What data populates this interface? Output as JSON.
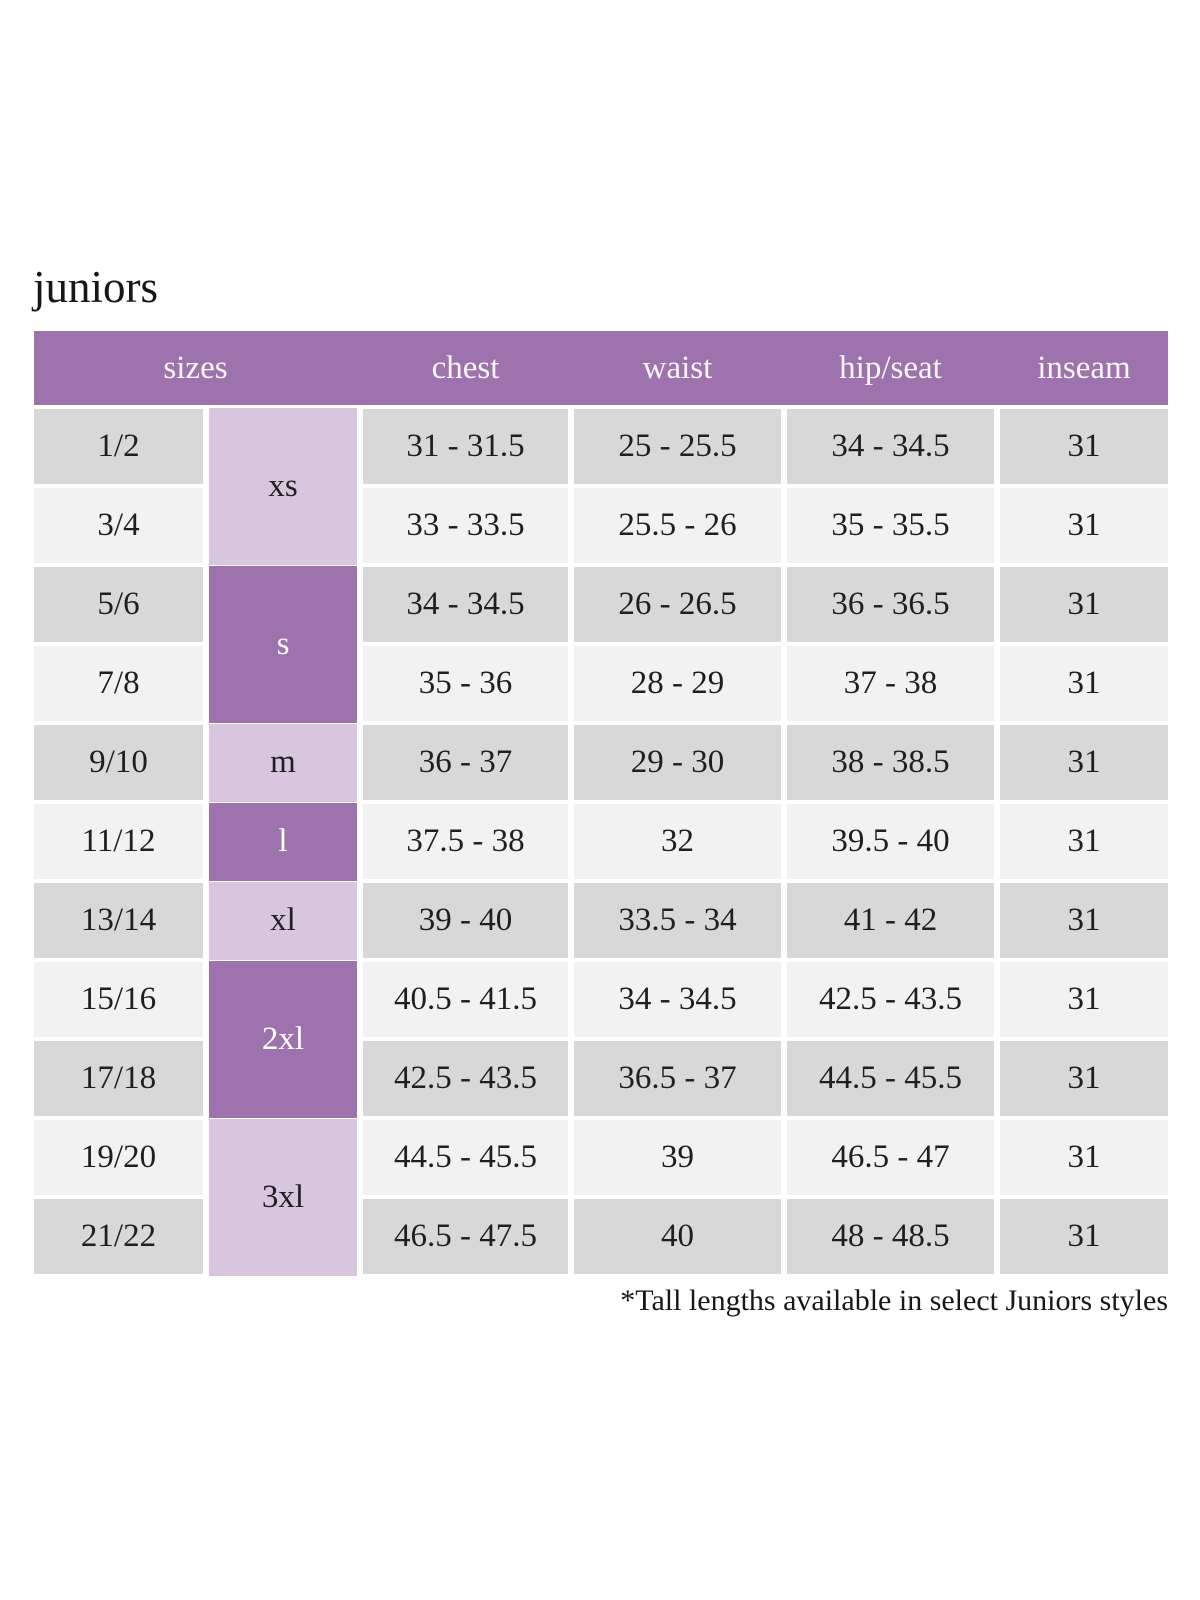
{
  "page": {
    "title": "juniors",
    "footnote": "*Tall lengths available in select Juniors styles"
  },
  "colors": {
    "purple": "#9e73ad",
    "light_purple": "#d7c6dd",
    "row_gray": "#d8d8d8",
    "row_light": "#f3f2f3",
    "header_text": "#f9f6fa",
    "text": "#1f1f1f",
    "background": "#ffffff"
  },
  "table": {
    "headers": [
      "sizes",
      "chest",
      "waist",
      "hip/seat",
      "inseam"
    ],
    "size_groups": [
      {
        "label": "xs",
        "span": 2,
        "shade": "light"
      },
      {
        "label": "s",
        "span": 2,
        "shade": "dark"
      },
      {
        "label": "m",
        "span": 1,
        "shade": "light"
      },
      {
        "label": "l",
        "span": 1,
        "shade": "dark"
      },
      {
        "label": "xl",
        "span": 1,
        "shade": "light"
      },
      {
        "label": "2xl",
        "span": 2,
        "shade": "dark"
      },
      {
        "label": "3xl",
        "span": 2,
        "shade": "light"
      }
    ],
    "rows": [
      {
        "size": "1/2",
        "chest": "31 - 31.5",
        "waist": "25 - 25.5",
        "hip_seat": "34 - 34.5",
        "inseam": "31"
      },
      {
        "size": "3/4",
        "chest": "33 - 33.5",
        "waist": "25.5 - 26",
        "hip_seat": "35 - 35.5",
        "inseam": "31"
      },
      {
        "size": "5/6",
        "chest": "34 - 34.5",
        "waist": "26 - 26.5",
        "hip_seat": "36 - 36.5",
        "inseam": "31"
      },
      {
        "size": "7/8",
        "chest": "35 - 36",
        "waist": "28 - 29",
        "hip_seat": "37 - 38",
        "inseam": "31"
      },
      {
        "size": "9/10",
        "chest": "36 - 37",
        "waist": "29 - 30",
        "hip_seat": "38 - 38.5",
        "inseam": "31"
      },
      {
        "size": "11/12",
        "chest": "37.5 - 38",
        "waist": "32",
        "hip_seat": "39.5 - 40",
        "inseam": "31"
      },
      {
        "size": "13/14",
        "chest": "39 - 40",
        "waist": "33.5 - 34",
        "hip_seat": "41 - 42",
        "inseam": "31"
      },
      {
        "size": "15/16",
        "chest": "40.5 - 41.5",
        "waist": "34 - 34.5",
        "hip_seat": "42.5 - 43.5",
        "inseam": "31"
      },
      {
        "size": "17/18",
        "chest": "42.5 - 43.5",
        "waist": "36.5 - 37",
        "hip_seat": "44.5 - 45.5",
        "inseam": "31"
      },
      {
        "size": "19/20",
        "chest": "44.5 - 45.5",
        "waist": "39",
        "hip_seat": "46.5 - 47",
        "inseam": "31"
      },
      {
        "size": "21/22",
        "chest": "46.5 - 47.5",
        "waist": "40",
        "hip_seat": "48 - 48.5",
        "inseam": "31"
      }
    ]
  },
  "chart_data": {
    "type": "table",
    "title": "juniors",
    "columns": [
      "sizes (numeric)",
      "sizes (letter)",
      "chest",
      "waist",
      "hip/seat",
      "inseam"
    ],
    "rows": [
      [
        "1/2",
        "xs",
        "31 - 31.5",
        "25 - 25.5",
        "34 - 34.5",
        "31"
      ],
      [
        "3/4",
        "xs",
        "33 - 33.5",
        "25.5 - 26",
        "35 - 35.5",
        "31"
      ],
      [
        "5/6",
        "s",
        "34 - 34.5",
        "26 - 26.5",
        "36 - 36.5",
        "31"
      ],
      [
        "7/8",
        "s",
        "35 - 36",
        "28 - 29",
        "37 - 38",
        "31"
      ],
      [
        "9/10",
        "m",
        "36 - 37",
        "29 - 30",
        "38 - 38.5",
        "31"
      ],
      [
        "11/12",
        "l",
        "37.5 - 38",
        "32",
        "39.5 - 40",
        "31"
      ],
      [
        "13/14",
        "xl",
        "39 - 40",
        "33.5 - 34",
        "41 - 42",
        "31"
      ],
      [
        "15/16",
        "2xl",
        "40.5 - 41.5",
        "34 - 34.5",
        "42.5 - 43.5",
        "31"
      ],
      [
        "17/18",
        "2xl",
        "42.5 - 43.5",
        "36.5 - 37",
        "44.5 - 45.5",
        "31"
      ],
      [
        "19/20",
        "3xl",
        "44.5 - 45.5",
        "39",
        "46.5 - 47",
        "31"
      ],
      [
        "21/22",
        "3xl",
        "46.5 - 47.5",
        "40",
        "48 - 48.5",
        "31"
      ]
    ],
    "footnote": "*Tall lengths available in select Juniors styles",
    "layout_hints": {
      "header_background": "#9e73ad",
      "letter_column_alternates": [
        "light-purple",
        "dark-purple"
      ],
      "row_stripes": [
        "#d8d8d8",
        "#f3f2f3"
      ],
      "grid": "white gaps between all cells"
    }
  }
}
